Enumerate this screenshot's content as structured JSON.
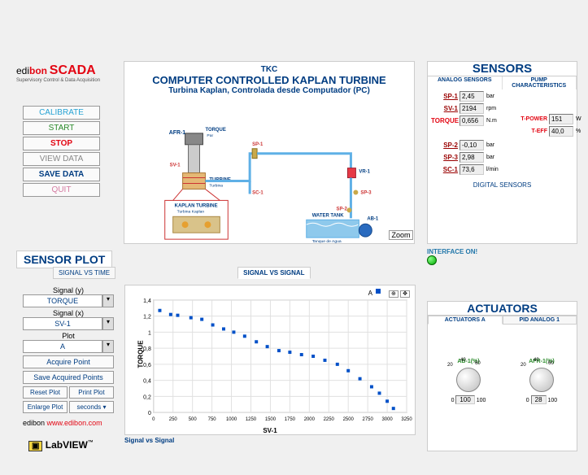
{
  "logo": {
    "edi": "edi",
    "bon": "bon",
    "scada": "SCADA",
    "sub": "Supervisory Control & Data Acquisition"
  },
  "title": {
    "code": "TKC",
    "main": "COMPUTER CONTROLLED KAPLAN TURBINE",
    "sub": "Turbina Kaplan, Controlada desde Computador (PC)"
  },
  "buttons": {
    "calibrate": "CALIBRATE",
    "start": "START",
    "stop": "STOP",
    "view": "VIEW DATA",
    "save": "SAVE DATA",
    "quit": "QUIT"
  },
  "btnColors": {
    "calibrate": "#27a3d4",
    "start": "#2a8a2a",
    "stop": "#e30613",
    "view": "#888",
    "save": "#003d82",
    "quit": "#d47aa0"
  },
  "diagramLabels": {
    "afr1": "AFR-1",
    "torque": "TORQUE",
    "par": "Par",
    "sv1": "SV-1",
    "sp1": "SP-1",
    "sc1": "SC-1",
    "turbine": "TURBINE",
    "turbina": "Turbina",
    "vr1": "VR-1",
    "sp3": "SP-3",
    "sp2": "SP-2",
    "ab1": "AB-1",
    "kt": "KAPLAN TURBINE",
    "kt2": "Turbina Kaplan",
    "wt": "WATER TANK",
    "wt2": "Tanque de Agua"
  },
  "zoom": "Zoom",
  "sensorsPanel": {
    "title": "SENSORS",
    "analog": "ANALOG SENSORS",
    "pump": "PUMP CHARACTERISTICS",
    "rows1": [
      {
        "label": "SP-1",
        "val": "2,45",
        "unit": "bar",
        "cls": "darkred"
      },
      {
        "label": "SV-1",
        "val": "2194",
        "unit": "rpm",
        "cls": "darkred"
      },
      {
        "label": "TORQUE",
        "val": "0,656",
        "unit": "N.m",
        "cls": "red"
      }
    ],
    "rows_right": [
      {
        "label": "T-POWER",
        "val": "151",
        "unit": "W",
        "cls": "red"
      },
      {
        "label": "T-EFF",
        "val": "40,0",
        "unit": "%",
        "cls": "red"
      }
    ],
    "rows2": [
      {
        "label": "SP-2",
        "val": "-0,10",
        "unit": "bar",
        "cls": "darkred"
      },
      {
        "label": "SP-3",
        "val": "2,98",
        "unit": "bar",
        "cls": "darkred"
      },
      {
        "label": "SC-1",
        "val": "73,6",
        "unit": "l/min",
        "cls": "darkred"
      }
    ],
    "digital": "DIGITAL SENSORS"
  },
  "iface": "INTERFACE ON!",
  "sensorPlot": {
    "title": "SENSOR PLOT",
    "tab1": "SIGNAL VS TIME",
    "tab2": "SIGNAL VS SIGNAL",
    "signalY": "Signal (y)",
    "torque": "TORQUE",
    "signalX": "Signal (x)",
    "sv1": "SV-1",
    "plot": "Plot",
    "A": "A",
    "acquire": "Acquire Point",
    "saveAcq": "Save Acquired Points",
    "reset": "Reset Plot",
    "print": "Print Plot",
    "enlarge": "Enlarge Plot",
    "seconds": "seconds"
  },
  "chart": {
    "legendA": "A",
    "ylabel": "TORQUE",
    "xlabel": "SV-1",
    "caption": "Signal vs Signal",
    "ylim": [
      0,
      1.4
    ],
    "xlim": [
      0,
      3250
    ],
    "yticks": [
      "0",
      "0,2",
      "0,4",
      "0,6",
      "0,8",
      "1",
      "1,2",
      "1,4"
    ],
    "xticks": [
      "0",
      "250",
      "500",
      "750",
      "1000",
      "1250",
      "1500",
      "1750",
      "2000",
      "2250",
      "2500",
      "2750",
      "3000",
      "3250"
    ],
    "points": [
      [
        80,
        1.27
      ],
      [
        220,
        1.22
      ],
      [
        310,
        1.21
      ],
      [
        480,
        1.18
      ],
      [
        620,
        1.16
      ],
      [
        760,
        1.09
      ],
      [
        900,
        1.04
      ],
      [
        1030,
        1.0
      ],
      [
        1170,
        0.95
      ],
      [
        1320,
        0.88
      ],
      [
        1460,
        0.82
      ],
      [
        1610,
        0.77
      ],
      [
        1750,
        0.75
      ],
      [
        1900,
        0.72
      ],
      [
        2050,
        0.7
      ],
      [
        2200,
        0.65
      ],
      [
        2360,
        0.6
      ],
      [
        2500,
        0.52
      ],
      [
        2650,
        0.42
      ],
      [
        2800,
        0.32
      ],
      [
        2900,
        0.24
      ],
      [
        3000,
        0.14
      ],
      [
        3080,
        0.05
      ]
    ],
    "pointColor": "#0050c8",
    "bg": "#ffffff",
    "grid": "#e0e0e0"
  },
  "actuators": {
    "title": "ACTUATORS",
    "tabA": "ACTUATORS A",
    "tabPID": "PID ANALOG 1",
    "ab": "AB-1(%)",
    "afr": "AFR-1(%)",
    "abVal": "100",
    "afrVal": "28",
    "ticks": [
      "0",
      "20",
      "40",
      "60",
      "80",
      "100"
    ]
  },
  "link": {
    "prefix": "edibon",
    "url": "www.edibon.com"
  },
  "labview": "LabVIEW"
}
